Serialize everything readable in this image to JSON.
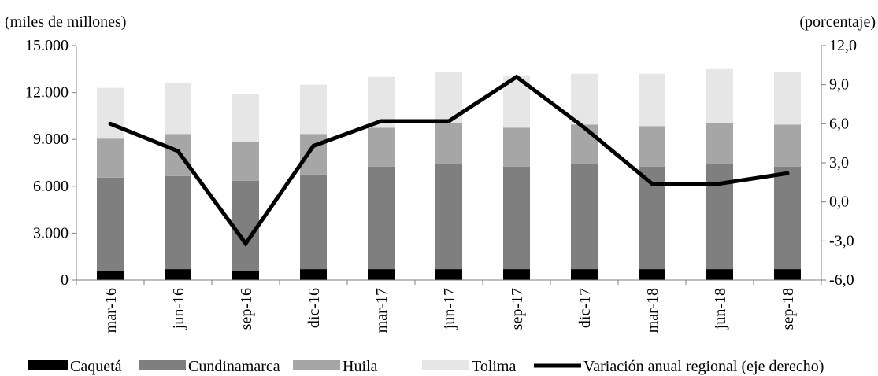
{
  "chart_data": {
    "type": "bar",
    "stacked": true,
    "categories": [
      "mar-16",
      "jun-16",
      "sep-16",
      "dic-16",
      "mar-17",
      "jun-17",
      "sep-17",
      "dic-17",
      "mar-18",
      "jun-18",
      "sep-18"
    ],
    "series": [
      {
        "name": "Caquetá",
        "values": [
          600,
          700,
          600,
          700,
          700,
          700,
          700,
          700,
          700,
          700,
          700
        ],
        "color": "#000000"
      },
      {
        "name": "Cundinamarca",
        "values": [
          5950,
          5950,
          5750,
          6050,
          6550,
          6750,
          6550,
          6750,
          6550,
          6750,
          6550
        ],
        "color": "#7f7f7f"
      },
      {
        "name": "Huila",
        "values": [
          2500,
          2700,
          2500,
          2600,
          2500,
          2600,
          2500,
          2500,
          2600,
          2600,
          2700
        ],
        "color": "#a6a6a6"
      },
      {
        "name": "Tolima",
        "values": [
          3250,
          3250,
          3050,
          3150,
          3250,
          3250,
          3350,
          3250,
          3350,
          3450,
          3350
        ],
        "color": "#e6e6e6"
      }
    ],
    "line_series": {
      "name": "Variación anual regional (eje derecho)",
      "values": [
        6.0,
        3.9,
        -3.2,
        4.3,
        6.2,
        6.2,
        9.6,
        5.7,
        1.4,
        1.4,
        2.2
      ],
      "color": "#000000",
      "axis": "right"
    },
    "left_axis": {
      "label": "(miles  de millones)",
      "ylim": [
        0,
        15000
      ],
      "ticks": [
        "0",
        "3.000",
        "6.000",
        "9.000",
        "12.000",
        "15.000"
      ]
    },
    "right_axis": {
      "label": "(porcentaje)",
      "ylim": [
        -6,
        12
      ],
      "ticks": [
        "-6,0",
        "-3,0",
        "0,0",
        "3,0",
        "6,0",
        "9,0",
        "12,0"
      ]
    },
    "legend_position": "bottom"
  }
}
